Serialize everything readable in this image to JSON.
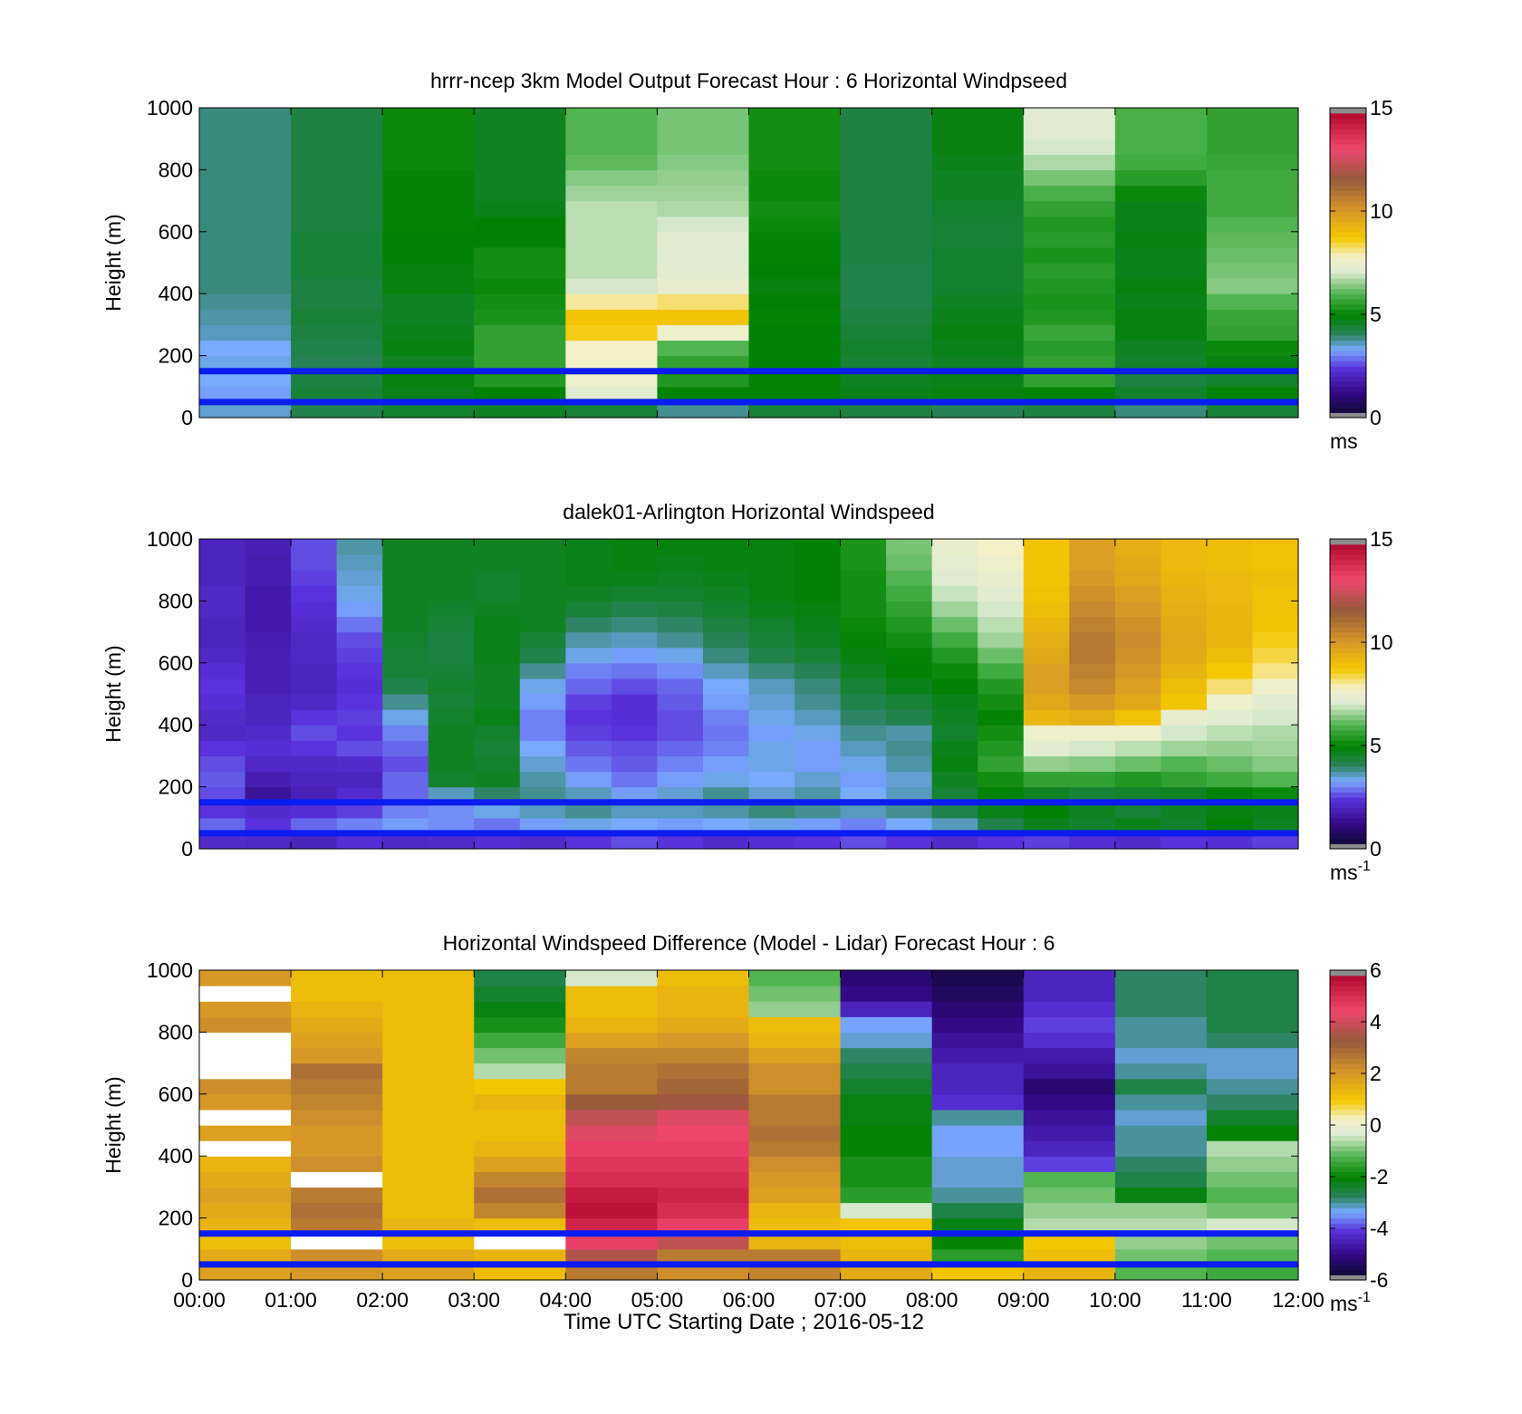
{
  "figure": {
    "xlabel": "Time UTC  Starting Date ; 2016-05-12"
  },
  "chart_data": [
    {
      "type": "heatmap",
      "title": "hrrr-ncep 3km Model Output   Forecast Hour : 6 Horizontal Windpseed",
      "ylabel": "Height (m)",
      "ylim": [
        0,
        1000
      ],
      "yticks": [
        0,
        200,
        400,
        600,
        800,
        1000
      ],
      "x_categories": [
        "00:00",
        "01:00",
        "02:00",
        "03:00",
        "04:00",
        "05:00",
        "06:00",
        "07:00",
        "08:00",
        "09:00",
        "10:00",
        "11:00"
      ],
      "xticks": [
        "00:00",
        "01:00",
        "02:00",
        "03:00",
        "04:00",
        "05:00",
        "06:00",
        "07:00",
        "08:00",
        "09:00",
        "10:00",
        "11:00",
        "12:00"
      ],
      "y_levels": [
        25,
        75,
        125,
        175,
        225,
        275,
        325,
        375,
        425,
        475,
        525,
        575,
        625,
        675,
        725,
        775,
        825,
        875,
        925,
        975
      ],
      "z": [
        [
          3.5,
          4.2,
          4.5,
          4.6,
          4.4,
          3.8,
          4.4,
          4.3,
          4.1,
          4.3,
          3.9,
          4.4
        ],
        [
          3.2,
          4.4,
          4.7,
          4.9,
          7.2,
          5.0,
          5.0,
          4.7,
          4.8,
          5.0,
          4.5,
          5.0
        ],
        [
          3.3,
          4.3,
          4.8,
          5.4,
          7.6,
          5.4,
          5.0,
          4.6,
          4.7,
          5.6,
          4.3,
          4.5
        ],
        [
          3.4,
          4.1,
          4.6,
          5.6,
          7.8,
          5.6,
          4.9,
          4.4,
          4.6,
          5.6,
          4.5,
          4.8
        ],
        [
          3.3,
          4.2,
          4.8,
          5.6,
          7.8,
          6.0,
          4.9,
          4.5,
          4.7,
          5.5,
          4.6,
          5.1
        ],
        [
          3.6,
          4.3,
          4.7,
          5.6,
          8.6,
          7.6,
          4.9,
          4.4,
          4.8,
          5.7,
          4.8,
          5.6
        ],
        [
          3.7,
          4.4,
          4.6,
          5.3,
          8.8,
          8.8,
          5.0,
          4.3,
          4.7,
          5.4,
          4.8,
          5.7
        ],
        [
          3.8,
          4.3,
          4.6,
          5.2,
          8.0,
          8.2,
          4.9,
          4.2,
          4.6,
          5.3,
          4.7,
          6.0
        ],
        [
          3.9,
          4.3,
          4.8,
          5.1,
          7.0,
          7.4,
          4.8,
          4.2,
          4.5,
          5.4,
          4.8,
          6.4
        ],
        [
          3.9,
          4.4,
          4.8,
          5.2,
          6.8,
          7.2,
          4.9,
          4.2,
          4.5,
          5.5,
          4.7,
          6.3
        ],
        [
          3.9,
          4.4,
          4.9,
          5.2,
          6.8,
          7.1,
          5.0,
          4.3,
          4.5,
          5.3,
          4.7,
          6.2
        ],
        [
          3.9,
          4.4,
          4.9,
          4.9,
          6.8,
          7.2,
          5.0,
          4.3,
          4.4,
          5.5,
          4.8,
          6.1
        ],
        [
          3.9,
          4.3,
          5.0,
          4.9,
          6.8,
          7.0,
          5.1,
          4.3,
          4.4,
          5.4,
          4.7,
          6.0
        ],
        [
          3.9,
          4.3,
          5.0,
          4.7,
          6.8,
          6.7,
          5.2,
          4.3,
          4.5,
          5.6,
          4.7,
          5.8
        ],
        [
          3.9,
          4.3,
          5.0,
          4.6,
          6.6,
          6.6,
          5.1,
          4.3,
          4.6,
          5.9,
          5.1,
          5.8
        ],
        [
          3.9,
          4.3,
          5.0,
          4.6,
          6.4,
          6.5,
          5.1,
          4.3,
          4.6,
          6.3,
          5.5,
          5.8
        ],
        [
          3.9,
          4.3,
          5.1,
          4.6,
          6.1,
          6.4,
          5.2,
          4.3,
          4.7,
          6.7,
          5.8,
          5.7
        ],
        [
          3.9,
          4.3,
          5.1,
          4.6,
          6.0,
          6.3,
          5.2,
          4.3,
          4.8,
          7.0,
          5.9,
          5.6
        ],
        [
          3.9,
          4.3,
          5.1,
          4.6,
          6.0,
          6.3,
          5.2,
          4.3,
          4.8,
          7.1,
          5.9,
          5.6
        ],
        [
          3.9,
          4.3,
          5.1,
          4.6,
          6.0,
          6.3,
          5.2,
          4.3,
          4.8,
          7.1,
          5.9,
          5.6
        ]
      ],
      "hlines": [
        50,
        150
      ],
      "colorbar": {
        "min": 0,
        "max": 15,
        "ticks": [
          0,
          5,
          10,
          15
        ],
        "units": "ms",
        "units_sup": ""
      }
    },
    {
      "type": "heatmap",
      "title": "dalek01-Arlington  Horizontal Windspeed",
      "ylabel": "Height (m)",
      "ylim": [
        0,
        1000
      ],
      "yticks": [
        0,
        200,
        400,
        600,
        800,
        1000
      ],
      "x_range": [
        "00:00",
        "12:00"
      ],
      "xticks": [
        "00:00",
        "01:00",
        "02:00",
        "03:00",
        "04:00",
        "05:00",
        "06:00",
        "07:00",
        "08:00",
        "09:00",
        "10:00",
        "11:00",
        "12:00"
      ],
      "y_levels": [
        25,
        75,
        125,
        175,
        225,
        275,
        325,
        375,
        425,
        475,
        525,
        575,
        625,
        675,
        725,
        775,
        825,
        875,
        925,
        975
      ],
      "z": [
        [
          2.2,
          2.1,
          2.0,
          2.3,
          2.1,
          2.2,
          2.3,
          2.2,
          2.4,
          2.6,
          2.4,
          2.2,
          2.3,
          2.4,
          2.6,
          2.4,
          2.2,
          2.4,
          2.5,
          2.3,
          2.2,
          2.4,
          2.3,
          2.5
        ],
        [
          2.8,
          2.4,
          2.8,
          3.0,
          3.2,
          3.1,
          2.9,
          3.2,
          3.4,
          3.3,
          3.2,
          3.3,
          3.4,
          3.2,
          3.0,
          3.3,
          3.6,
          4.2,
          4.7,
          4.5,
          4.7,
          4.5,
          4.9,
          4.6
        ],
        [
          2.4,
          2.2,
          2.3,
          2.5,
          3.0,
          3.1,
          3.4,
          3.6,
          3.8,
          3.6,
          3.6,
          3.7,
          3.9,
          3.8,
          3.6,
          3.8,
          4.2,
          4.7,
          4.9,
          4.6,
          4.4,
          4.6,
          4.8,
          4.7
        ],
        [
          2.6,
          1.5,
          1.9,
          2.2,
          2.8,
          3.6,
          4.0,
          3.8,
          3.6,
          3.2,
          3.5,
          3.8,
          3.5,
          3.7,
          3.3,
          3.6,
          4.4,
          5.0,
          4.6,
          4.4,
          4.5,
          4.6,
          4.9,
          5.1
        ],
        [
          2.7,
          1.8,
          2.0,
          2.0,
          2.8,
          4.5,
          4.6,
          3.7,
          3.2,
          2.9,
          3.2,
          3.4,
          3.3,
          3.5,
          3.2,
          3.5,
          4.6,
          5.2,
          5.6,
          5.6,
          5.4,
          5.6,
          5.8,
          6.0
        ],
        [
          2.6,
          2.1,
          2.1,
          2.2,
          2.6,
          4.6,
          4.5,
          3.5,
          2.9,
          2.7,
          3.0,
          3.2,
          3.4,
          3.2,
          3.4,
          3.7,
          4.8,
          5.6,
          6.5,
          6.4,
          6.2,
          6.0,
          6.2,
          6.4
        ],
        [
          2.4,
          2.3,
          2.4,
          2.6,
          2.8,
          4.6,
          4.4,
          3.3,
          2.7,
          2.6,
          2.8,
          3.0,
          3.4,
          3.2,
          3.6,
          3.8,
          4.7,
          5.4,
          7.2,
          7.0,
          6.8,
          6.6,
          6.5,
          6.6
        ],
        [
          2.1,
          2.2,
          2.6,
          2.4,
          3.0,
          4.6,
          4.5,
          3.0,
          2.5,
          2.4,
          2.6,
          2.9,
          3.2,
          3.4,
          3.8,
          3.7,
          4.5,
          5.2,
          7.6,
          7.6,
          7.6,
          7.0,
          6.8,
          6.7
        ],
        [
          2.2,
          2.0,
          2.4,
          2.5,
          3.4,
          4.5,
          4.7,
          3.0,
          2.4,
          2.3,
          2.6,
          3.0,
          3.4,
          3.6,
          4.0,
          4.2,
          4.6,
          5.0,
          9.2,
          9.4,
          8.9,
          7.4,
          7.2,
          7.0
        ],
        [
          2.3,
          2.0,
          2.1,
          2.4,
          3.8,
          4.4,
          4.6,
          3.2,
          2.5,
          2.3,
          2.7,
          3.2,
          3.5,
          3.8,
          4.2,
          4.4,
          4.7,
          5.2,
          9.6,
          10.0,
          9.6,
          8.8,
          7.6,
          7.2
        ],
        [
          2.4,
          1.9,
          2.0,
          2.3,
          4.2,
          4.5,
          4.6,
          3.4,
          2.8,
          2.6,
          2.8,
          3.3,
          3.6,
          3.9,
          4.4,
          4.7,
          4.9,
          5.4,
          9.8,
          10.4,
          9.8,
          9.0,
          8.2,
          7.6
        ],
        [
          2.3,
          1.9,
          2.0,
          2.4,
          4.4,
          4.4,
          4.6,
          3.8,
          3.0,
          2.9,
          3.1,
          3.6,
          3.9,
          4.1,
          4.6,
          4.9,
          5.1,
          5.8,
          9.8,
          10.6,
          10.0,
          9.3,
          8.7,
          8.1
        ],
        [
          2.1,
          1.9,
          2.1,
          2.5,
          4.4,
          4.3,
          4.7,
          4.2,
          3.4,
          3.2,
          3.4,
          3.9,
          4.2,
          4.4,
          4.8,
          5.0,
          5.4,
          6.2,
          9.6,
          10.8,
          10.2,
          9.5,
          9.0,
          8.4
        ],
        [
          2.0,
          1.8,
          2.1,
          2.6,
          4.5,
          4.3,
          4.7,
          4.4,
          3.7,
          3.6,
          3.8,
          4.1,
          4.4,
          4.6,
          5.0,
          5.2,
          5.8,
          6.6,
          9.4,
          10.8,
          10.3,
          9.6,
          9.2,
          8.6
        ],
        [
          2.0,
          1.7,
          2.2,
          2.9,
          4.6,
          4.4,
          4.7,
          4.6,
          4.0,
          3.9,
          4.0,
          4.3,
          4.5,
          4.7,
          5.1,
          5.4,
          6.2,
          6.8,
          9.2,
          10.6,
          10.2,
          9.5,
          9.2,
          8.8
        ],
        [
          2.1,
          1.7,
          2.3,
          3.2,
          4.6,
          4.5,
          4.6,
          4.6,
          4.4,
          4.2,
          4.3,
          4.5,
          4.7,
          4.8,
          5.2,
          5.6,
          6.6,
          7.0,
          9.0,
          10.4,
          10.0,
          9.4,
          9.2,
          8.9
        ],
        [
          2.1,
          1.7,
          2.4,
          3.4,
          4.6,
          4.6,
          4.5,
          4.6,
          4.6,
          4.5,
          4.5,
          4.6,
          4.8,
          4.9,
          5.2,
          5.8,
          6.9,
          7.2,
          8.9,
          10.2,
          9.8,
          9.3,
          9.1,
          8.9
        ],
        [
          2.0,
          1.8,
          2.5,
          3.5,
          4.6,
          4.6,
          4.5,
          4.6,
          4.7,
          4.7,
          4.6,
          4.7,
          4.8,
          4.9,
          5.2,
          6.0,
          7.1,
          7.4,
          8.8,
          10.0,
          9.6,
          9.2,
          9.1,
          9.0
        ],
        [
          2.0,
          1.8,
          2.6,
          3.6,
          4.6,
          4.6,
          4.6,
          4.6,
          4.7,
          4.8,
          4.7,
          4.8,
          4.8,
          4.9,
          5.3,
          6.2,
          7.3,
          7.6,
          8.8,
          9.8,
          9.5,
          9.1,
          9.0,
          8.9
        ],
        [
          2.0,
          1.9,
          2.6,
          3.7,
          4.6,
          4.6,
          4.6,
          4.6,
          4.7,
          4.8,
          4.8,
          4.8,
          4.8,
          4.9,
          5.3,
          6.3,
          7.4,
          7.8,
          8.8,
          9.8,
          9.4,
          9.1,
          9.0,
          8.9
        ]
      ],
      "hlines": [
        50,
        150
      ],
      "colorbar": {
        "min": 0,
        "max": 15,
        "ticks": [
          0,
          5,
          10,
          15
        ],
        "units": "ms",
        "units_sup": "-1"
      }
    },
    {
      "type": "heatmap",
      "title": "Horizontal Windspeed Difference (Model - Lidar) Forecast Hour : 6",
      "ylabel": "Height (m)",
      "ylim": [
        0,
        1000
      ],
      "yticks": [
        0,
        200,
        400,
        600,
        800,
        1000
      ],
      "x_categories": [
        "00:00",
        "01:00",
        "02:00",
        "03:00",
        "04:00",
        "05:00",
        "06:00",
        "07:00",
        "08:00",
        "09:00",
        "10:00",
        "11:00"
      ],
      "xticks": [
        "00:00",
        "01:00",
        "02:00",
        "03:00",
        "04:00",
        "05:00",
        "06:00",
        "07:00",
        "08:00",
        "09:00",
        "10:00",
        "11:00",
        "12:00"
      ],
      "y_levels": [
        25,
        75,
        125,
        175,
        225,
        275,
        325,
        375,
        425,
        475,
        525,
        575,
        625,
        675,
        725,
        775,
        825,
        875,
        925,
        975
      ],
      "z": [
        [
          1.8,
          2.0,
          1.8,
          1.2,
          2.6,
          2.2,
          2.4,
          1.6,
          1.0,
          1.4,
          -1.2,
          -1.4
        ],
        [
          1.6,
          2.2,
          1.6,
          1.4,
          3.6,
          2.6,
          2.6,
          1.4,
          -1.6,
          1.2,
          -1.0,
          -1.2
        ],
        [
          1.2,
          null,
          1.2,
          null,
          4.6,
          3.8,
          1.4,
          1.2,
          -2.0,
          1.0,
          -0.8,
          -1.0
        ],
        [
          1.4,
          2.6,
          1.4,
          1.2,
          5.2,
          4.6,
          1.2,
          1.0,
          -2.2,
          -0.6,
          -0.6,
          -0.4
        ],
        [
          1.6,
          2.8,
          1.2,
          2.4,
          5.6,
          5.0,
          1.4,
          -0.4,
          -2.6,
          -0.8,
          -0.8,
          -1.0
        ],
        [
          1.8,
          2.6,
          1.2,
          2.8,
          5.4,
          5.2,
          1.8,
          -1.6,
          -3.0,
          -1.0,
          -2.2,
          -1.2
        ],
        [
          1.6,
          null,
          1.2,
          2.4,
          5.0,
          5.0,
          2.0,
          -1.8,
          -3.2,
          -1.2,
          -2.6,
          -1.0
        ],
        [
          1.4,
          2.2,
          1.2,
          1.8,
          4.8,
          4.8,
          2.2,
          -1.8,
          -3.2,
          -4.0,
          -2.8,
          -0.8
        ],
        [
          null,
          2.0,
          1.2,
          1.4,
          4.6,
          4.6,
          2.6,
          -2.0,
          -3.4,
          -4.4,
          -3.0,
          -0.6
        ],
        [
          1.8,
          2.0,
          1.2,
          1.2,
          4.2,
          4.4,
          2.8,
          -2.0,
          -3.4,
          -4.6,
          -3.0,
          -2.0
        ],
        [
          null,
          2.2,
          1.2,
          1.2,
          3.8,
          4.2,
          2.6,
          -2.2,
          -3.0,
          -4.8,
          -3.2,
          -2.4
        ],
        [
          2.0,
          2.4,
          1.2,
          1.4,
          3.2,
          3.4,
          2.6,
          -2.2,
          -4.2,
          -5.0,
          -3.0,
          -2.8
        ],
        [
          2.2,
          2.6,
          1.2,
          1.0,
          2.6,
          3.0,
          2.2,
          -2.4,
          -4.4,
          -5.2,
          -2.6,
          -3.0
        ],
        [
          null,
          2.8,
          1.2,
          -0.6,
          2.6,
          2.8,
          2.2,
          -2.6,
          -4.4,
          -4.8,
          -3.0,
          -3.2
        ],
        [
          null,
          2.0,
          1.2,
          -1.0,
          2.4,
          2.4,
          1.8,
          -2.8,
          -4.6,
          -4.6,
          -3.2,
          -3.2
        ],
        [
          null,
          1.8,
          1.2,
          -1.4,
          1.8,
          2.0,
          1.4,
          -3.2,
          -4.8,
          -4.2,
          -3.0,
          -2.8
        ],
        [
          2.2,
          1.6,
          1.2,
          -1.8,
          1.4,
          1.6,
          1.2,
          -3.4,
          -5.0,
          -4.0,
          -3.0,
          -2.6
        ],
        [
          2.0,
          1.4,
          1.2,
          -2.2,
          1.2,
          1.4,
          -0.8,
          -4.4,
          -5.2,
          -4.2,
          -2.8,
          -2.6
        ],
        [
          null,
          1.2,
          1.2,
          -2.4,
          1.2,
          1.4,
          -1.0,
          -5.0,
          -5.4,
          -4.4,
          -2.8,
          -2.6
        ],
        [
          2.0,
          1.2,
          1.2,
          -2.6,
          -0.4,
          1.2,
          -1.2,
          -5.2,
          -5.6,
          -4.4,
          -2.8,
          -2.6
        ]
      ],
      "hlines": [
        50,
        150
      ],
      "colorbar": {
        "min": -6,
        "max": 6,
        "ticks": [
          -6,
          -4,
          -2,
          0,
          2,
          4,
          6
        ],
        "units": "ms",
        "units_sup": "-1"
      }
    }
  ]
}
